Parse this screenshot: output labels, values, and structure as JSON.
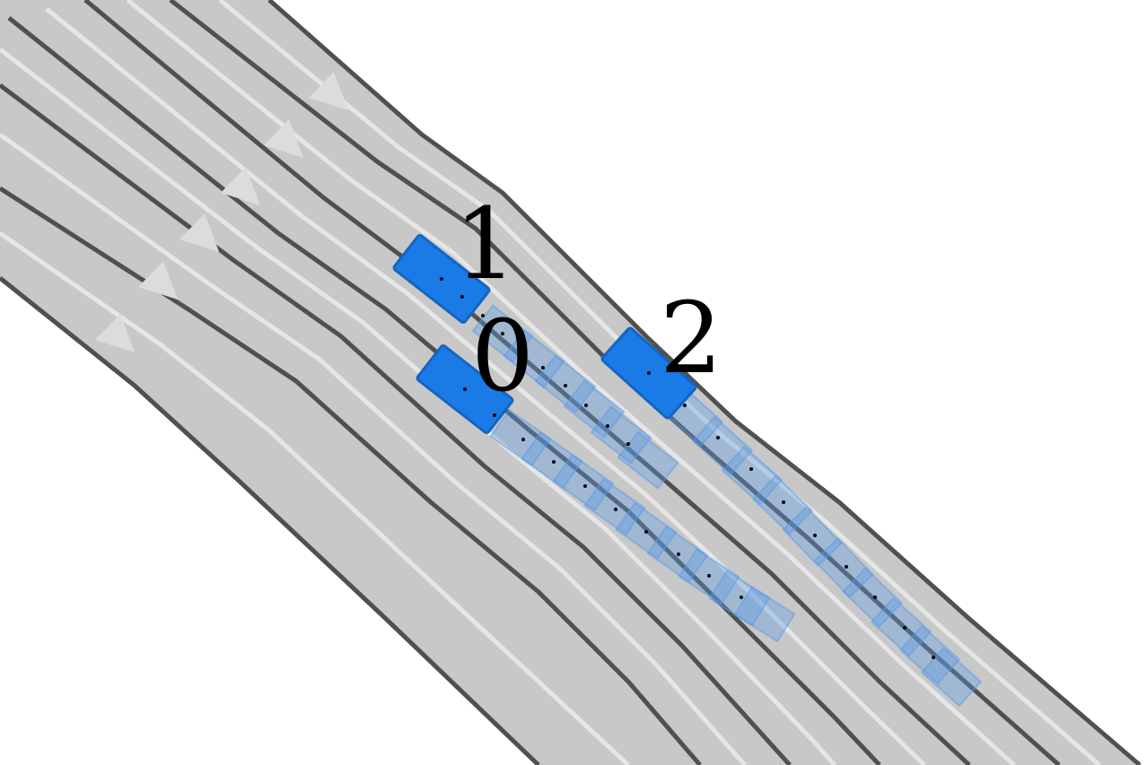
{
  "colors": {
    "background": "#ffffff",
    "road": "#c8c8c8",
    "lane_boundary": "#505050",
    "lane_center": "#e6e6e6",
    "arrow": "#dcdcdc",
    "vehicle": "#1a7ae6",
    "trail": "#5a9ae6",
    "dot": "#000000"
  },
  "vehicles": [
    {
      "id": "vehicle-0",
      "label": "0"
    },
    {
      "id": "vehicle-1",
      "label": "1"
    },
    {
      "id": "vehicle-2",
      "label": "2"
    }
  ]
}
